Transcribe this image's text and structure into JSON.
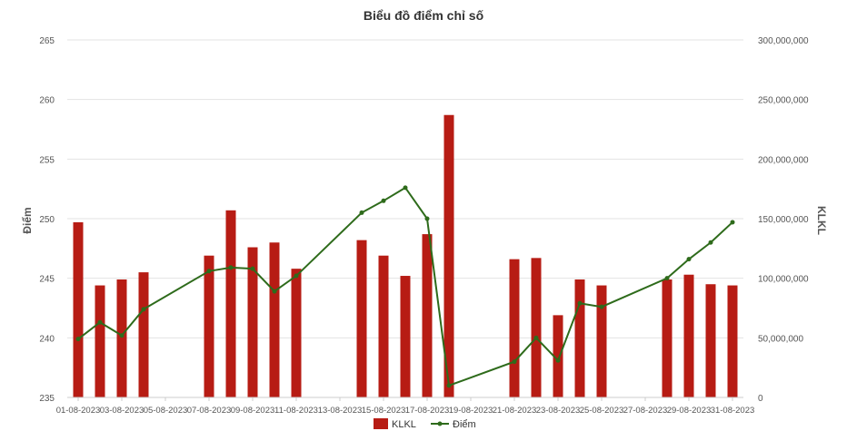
{
  "chart_data": {
    "type": "bar+line",
    "title": "Biểu đồ điểm chỉ số",
    "y_left_label": "Điểm",
    "y_right_label": "KLKL",
    "y_left_range": [
      235,
      265
    ],
    "y_left_ticks": [
      "235",
      "240",
      "245",
      "250",
      "255",
      "260",
      "265"
    ],
    "y_right_range": [
      0,
      300000000
    ],
    "y_right_ticks": [
      "0",
      "50,000,000",
      "100,000,000",
      "150,000,000",
      "200,000,000",
      "250,000,000",
      "300,000,000"
    ],
    "x_tick_labels": [
      "01-08-2023",
      "03-08-2023",
      "05-08-2023",
      "07-08-2023",
      "09-08-2023",
      "11-08-2023",
      "13-08-2023",
      "15-08-2023",
      "17-08-2023",
      "19-08-2023",
      "21-08-2023",
      "23-08-2023",
      "25-08-2023",
      "27-08-2023",
      "29-08-2023",
      "31-08-2023"
    ],
    "grid": true,
    "legend_position": "bottom",
    "series": [
      {
        "name": "KLKL",
        "type": "bar",
        "axis": "right",
        "color": "#b71c14",
        "points": [
          {
            "x": "01-08-2023",
            "y": 147000000
          },
          {
            "x": "02-08-2023",
            "y": 94000000
          },
          {
            "x": "03-08-2023",
            "y": 99000000
          },
          {
            "x": "04-08-2023",
            "y": 105000000
          },
          {
            "x": "07-08-2023",
            "y": 119000000
          },
          {
            "x": "08-08-2023",
            "y": 157000000
          },
          {
            "x": "09-08-2023",
            "y": 126000000
          },
          {
            "x": "10-08-2023",
            "y": 130000000
          },
          {
            "x": "11-08-2023",
            "y": 108000000
          },
          {
            "x": "14-08-2023",
            "y": 132000000
          },
          {
            "x": "15-08-2023",
            "y": 119000000
          },
          {
            "x": "16-08-2023",
            "y": 102000000
          },
          {
            "x": "17-08-2023",
            "y": 137000000
          },
          {
            "x": "18-08-2023",
            "y": 237000000
          },
          {
            "x": "21-08-2023",
            "y": 116000000
          },
          {
            "x": "22-08-2023",
            "y": 117000000
          },
          {
            "x": "23-08-2023",
            "y": 69000000
          },
          {
            "x": "24-08-2023",
            "y": 99000000
          },
          {
            "x": "25-08-2023",
            "y": 94000000
          },
          {
            "x": "28-08-2023",
            "y": 99000000
          },
          {
            "x": "29-08-2023",
            "y": 103000000
          },
          {
            "x": "30-08-2023",
            "y": 95000000
          },
          {
            "x": "31-08-2023",
            "y": 94000000
          }
        ]
      },
      {
        "name": "Điểm",
        "type": "line",
        "axis": "left",
        "color": "#2e6b1b",
        "points": [
          {
            "x": "01-08-2023",
            "y": 239.9
          },
          {
            "x": "02-08-2023",
            "y": 241.3
          },
          {
            "x": "03-08-2023",
            "y": 240.2
          },
          {
            "x": "04-08-2023",
            "y": 242.4
          },
          {
            "x": "07-08-2023",
            "y": 245.6
          },
          {
            "x": "08-08-2023",
            "y": 245.9
          },
          {
            "x": "09-08-2023",
            "y": 245.8
          },
          {
            "x": "10-08-2023",
            "y": 243.9
          },
          {
            "x": "11-08-2023",
            "y": 245.2
          },
          {
            "x": "14-08-2023",
            "y": 250.5
          },
          {
            "x": "15-08-2023",
            "y": 251.5
          },
          {
            "x": "16-08-2023",
            "y": 252.6
          },
          {
            "x": "17-08-2023",
            "y": 250.0
          },
          {
            "x": "18-08-2023",
            "y": 236.0
          },
          {
            "x": "21-08-2023",
            "y": 238.0
          },
          {
            "x": "22-08-2023",
            "y": 240.0
          },
          {
            "x": "23-08-2023",
            "y": 238.1
          },
          {
            "x": "24-08-2023",
            "y": 242.9
          },
          {
            "x": "25-08-2023",
            "y": 242.6
          },
          {
            "x": "28-08-2023",
            "y": 245.0
          },
          {
            "x": "29-08-2023",
            "y": 246.6
          },
          {
            "x": "30-08-2023",
            "y": 248.0
          },
          {
            "x": "31-08-2023",
            "y": 249.7
          }
        ]
      }
    ]
  }
}
